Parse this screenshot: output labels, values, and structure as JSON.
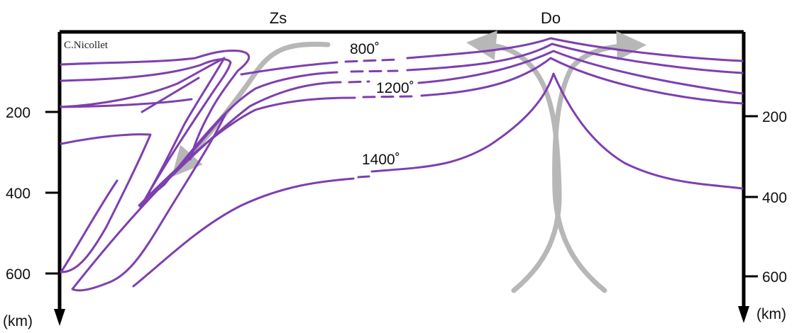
{
  "top_labels": {
    "left": "Zs",
    "right": "Do"
  },
  "credit": "C.Nicollet",
  "isotherms": [
    "800˚",
    "1200˚",
    "1400˚"
  ],
  "depth_ticks": [
    "200",
    "400",
    "600"
  ],
  "unit": "(km)",
  "colors": {
    "isotherm": "#7e3fb0",
    "flow": "#b7b7b7",
    "axis": "#000000"
  }
}
